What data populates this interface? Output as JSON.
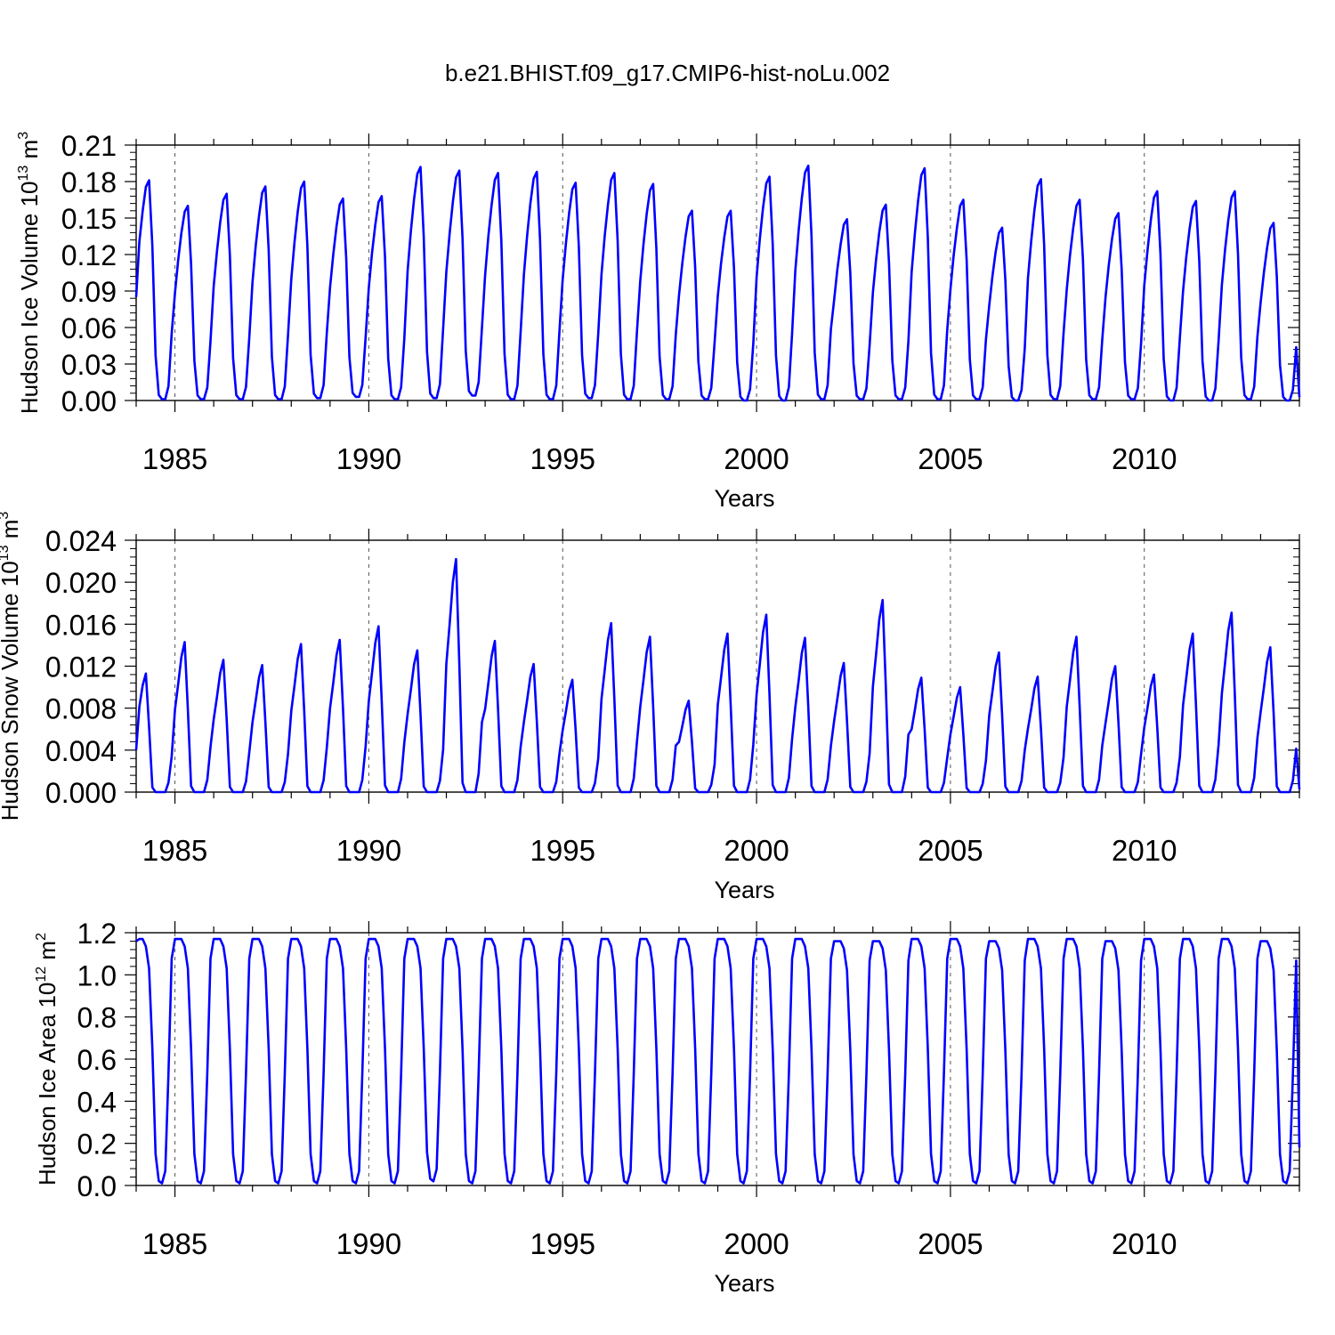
{
  "figure": {
    "title": "b.e21.BHIST.f09_g17.CMIP6-hist-noLu.002"
  },
  "colors": {
    "line": "#0000ff",
    "axis": "#000000",
    "grid": "#555555"
  },
  "chart_data": [
    {
      "type": "line",
      "title": "",
      "ylabel": "Hudson Ice Volume 10",
      "ylabel_exp": "13",
      "ylabel_unit": "m",
      "ylabel_unit_exp": "3",
      "xlabel": "Years",
      "xlim": [
        1984.0,
        2014.0
      ],
      "ylim": [
        0.0,
        0.21
      ],
      "yticks": [
        0.0,
        0.03,
        0.06,
        0.09,
        0.12,
        0.15,
        0.18,
        0.21
      ],
      "ytick_labels": [
        "0.00",
        "0.03",
        "0.06",
        "0.09",
        "0.12",
        "0.15",
        "0.18",
        "0.21"
      ],
      "xticks": [
        1985,
        1990,
        1995,
        2000,
        2005,
        2010
      ],
      "xtick_labels": [
        "1985",
        "1990",
        "1995",
        "2000",
        "2005",
        "2010"
      ],
      "grid_x": true,
      "series": [
        {
          "name": "Hudson Ice Volume",
          "start": 1984.0,
          "step": 0.0833333,
          "annual_peaks": [
            0.181,
            0.16,
            0.17,
            0.176,
            0.18,
            0.166,
            0.168,
            0.192,
            0.189,
            0.187,
            0.188,
            0.179,
            0.187,
            0.178,
            0.156,
            0.156,
            0.184,
            0.193,
            0.149,
            0.161,
            0.191,
            0.165,
            0.142,
            0.182,
            0.165,
            0.154,
            0.172,
            0.164,
            0.172,
            0.146,
            0.005
          ],
          "annual_minima": [
            0.001,
            0.001,
            0.001,
            0.001,
            0.002,
            0.003,
            0.001,
            0.002,
            0.004,
            0.001,
            0.001,
            0.002,
            0.001,
            0.001,
            0.001,
            0.0,
            0.0,
            0.001,
            0.001,
            0.001,
            0.001,
            0.001,
            0.0,
            0.001,
            0.001,
            0.001,
            0.0,
            0.0,
            0.001,
            0.0,
            0.0
          ],
          "first_value": 0.085,
          "peak_month": 4,
          "shape": "ice"
        }
      ]
    },
    {
      "type": "line",
      "title": "",
      "ylabel": "Hudson Snow Volume 10",
      "ylabel_exp": "13",
      "ylabel_unit": "m",
      "ylabel_unit_exp": "3",
      "xlabel": "Years",
      "xlim": [
        1984.0,
        2014.0
      ],
      "ylim": [
        0.0,
        0.024
      ],
      "yticks": [
        0.0,
        0.004,
        0.008,
        0.012,
        0.016,
        0.02,
        0.024
      ],
      "ytick_labels": [
        "0.000",
        "0.004",
        "0.008",
        "0.012",
        "0.016",
        "0.020",
        "0.024"
      ],
      "xticks": [
        1985,
        1990,
        1995,
        2000,
        2005,
        2010
      ],
      "xtick_labels": [
        "1985",
        "1990",
        "1995",
        "2000",
        "2005",
        "2010"
      ],
      "grid_x": true,
      "series": [
        {
          "name": "Hudson Snow Volume",
          "start": 1984.0,
          "step": 0.0833333,
          "annual_peaks": [
            0.0113,
            0.0143,
            0.0126,
            0.0121,
            0.0141,
            0.0145,
            0.0158,
            0.0135,
            0.0222,
            0.0144,
            0.0122,
            0.0107,
            0.0161,
            0.0148,
            0.0087,
            0.0151,
            0.0169,
            0.0147,
            0.0123,
            0.0183,
            0.0109,
            0.01,
            0.0133,
            0.011,
            0.0148,
            0.012,
            0.0112,
            0.0151,
            0.0171,
            0.0138,
            0.0005
          ],
          "annual_minima": [
            0.0,
            0.0,
            0.0,
            0.0,
            0.0,
            0.0,
            0.0,
            0.0,
            0.0,
            0.0,
            0.0,
            0.0,
            0.0,
            0.0,
            0.0,
            0.0,
            0.0,
            0.0,
            0.0,
            0.0,
            0.0,
            0.0,
            0.0,
            0.0,
            0.0,
            0.0,
            0.0,
            0.0,
            0.0,
            0.0,
            0.0
          ],
          "first_value": 0.004,
          "peak_month": 3,
          "shape": "snow"
        }
      ]
    },
    {
      "type": "line",
      "title": "",
      "ylabel": "Hudson Ice Area 10",
      "ylabel_exp": "12",
      "ylabel_unit": "m",
      "ylabel_unit_exp": "2",
      "xlabel": "Years",
      "xlim": [
        1984.0,
        2014.0
      ],
      "ylim": [
        0.0,
        1.2
      ],
      "yticks": [
        0.0,
        0.2,
        0.4,
        0.6,
        0.8,
        1.0,
        1.2
      ],
      "ytick_labels": [
        "0.0",
        "0.2",
        "0.4",
        "0.6",
        "0.8",
        "1.0",
        "1.2"
      ],
      "xticks": [
        1985,
        1990,
        1995,
        2000,
        2005,
        2010
      ],
      "xtick_labels": [
        "1985",
        "1990",
        "1995",
        "2000",
        "2005",
        "2010"
      ],
      "grid_x": true,
      "series": [
        {
          "name": "Hudson Ice Area",
          "start": 1984.0,
          "step": 0.0833333,
          "annual_peaks": [
            1.17,
            1.17,
            1.17,
            1.17,
            1.17,
            1.17,
            1.17,
            1.17,
            1.17,
            1.17,
            1.17,
            1.17,
            1.17,
            1.17,
            1.17,
            1.17,
            1.17,
            1.17,
            1.16,
            1.16,
            1.17,
            1.17,
            1.16,
            1.17,
            1.17,
            1.16,
            1.17,
            1.17,
            1.17,
            1.16,
            0.18
          ],
          "annual_minima": [
            0.01,
            0.01,
            0.01,
            0.01,
            0.01,
            0.01,
            0.01,
            0.02,
            0.01,
            0.01,
            0.01,
            0.01,
            0.01,
            0.01,
            0.01,
            0.01,
            0.01,
            0.01,
            0.01,
            0.01,
            0.01,
            0.01,
            0.01,
            0.01,
            0.01,
            0.01,
            0.01,
            0.01,
            0.01,
            0.01,
            0.0
          ],
          "first_value": 1.16,
          "peak_month": 1,
          "shape": "area"
        }
      ]
    }
  ]
}
